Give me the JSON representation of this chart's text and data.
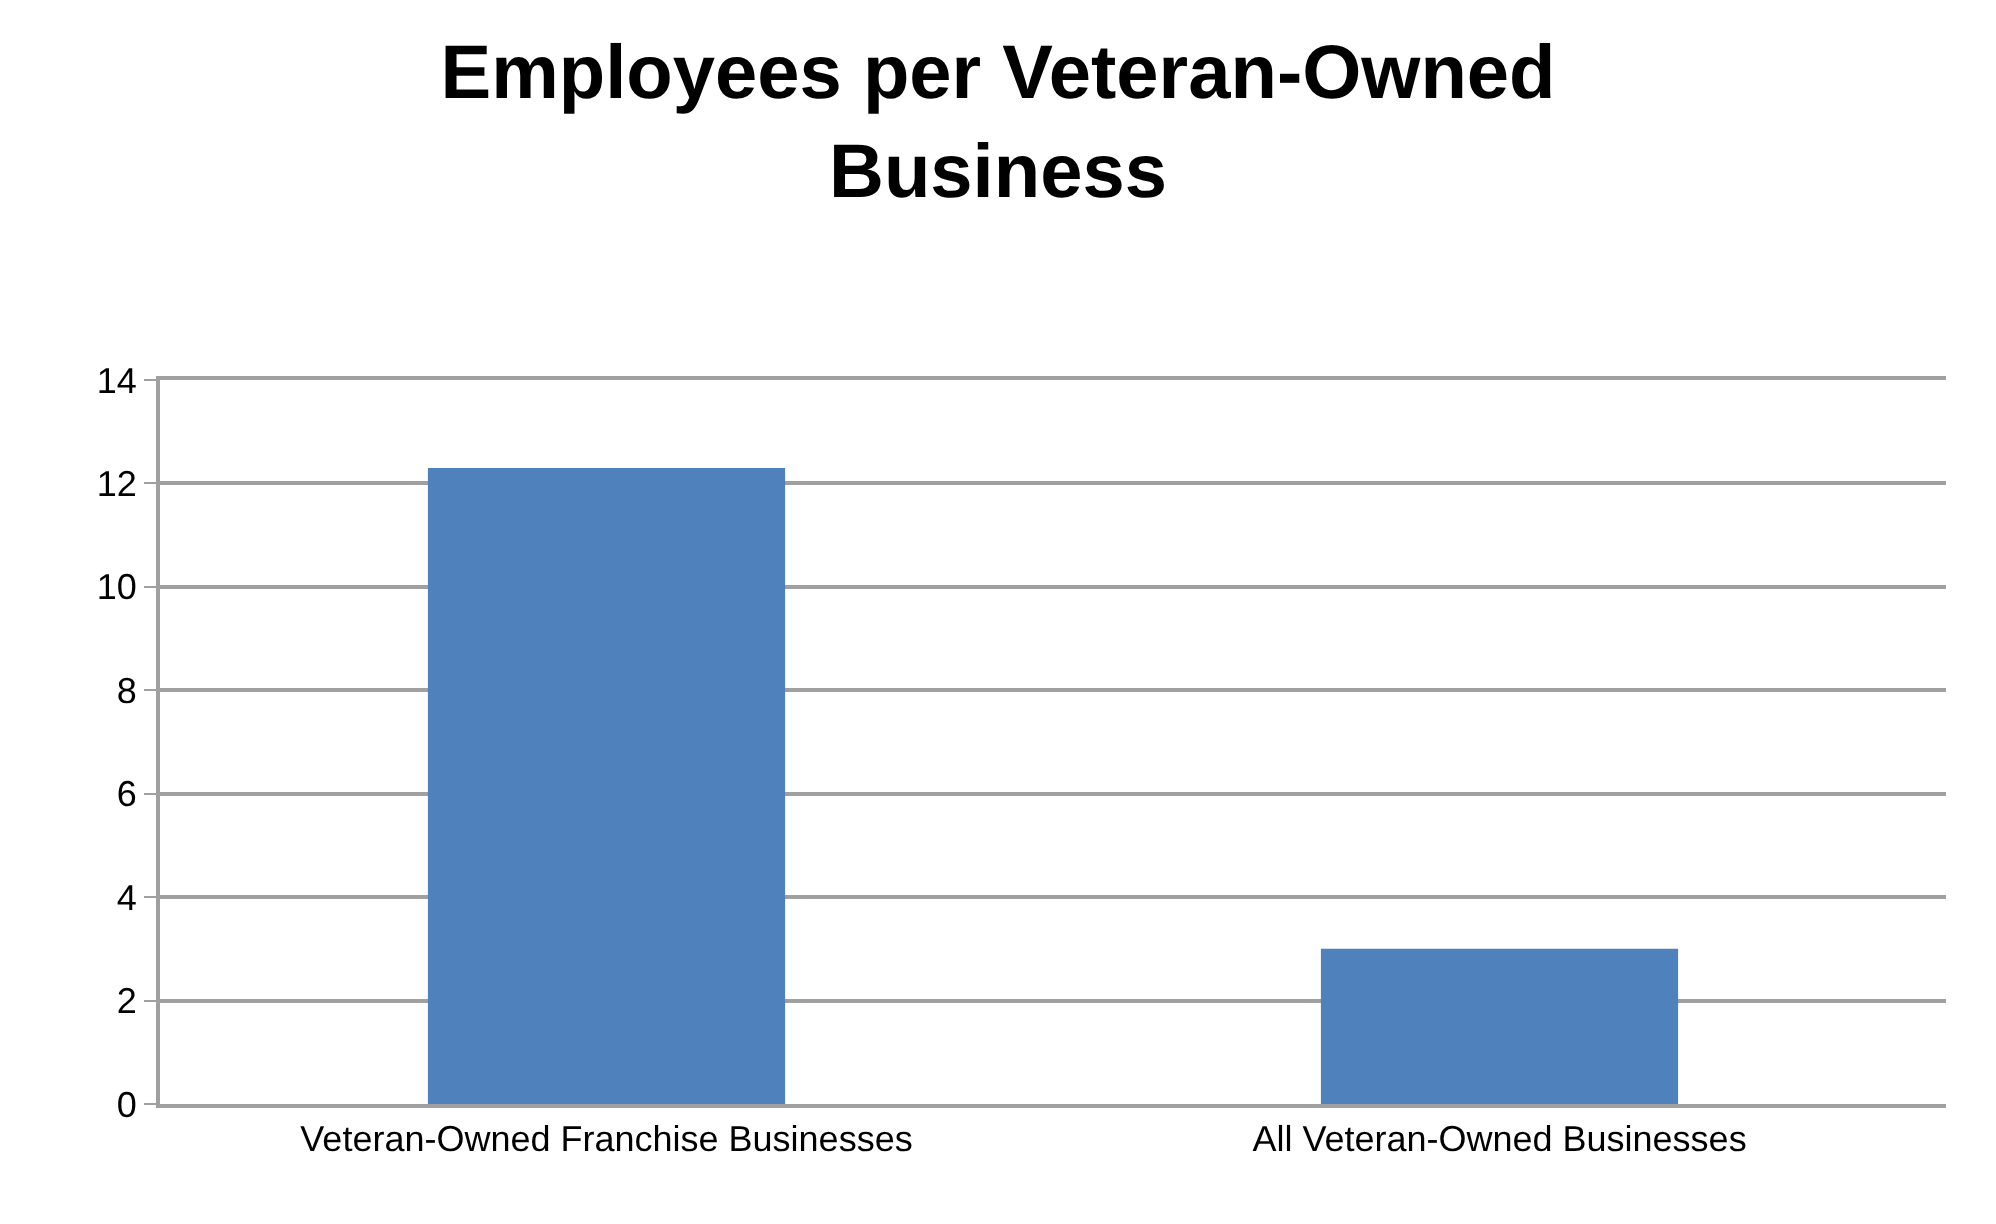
{
  "chart_data": {
    "type": "bar",
    "title": "Employees per Veteran-Owned Business",
    "categories": [
      "Veteran-Owned Franchise Businesses",
      "All Veteran-Owned Businesses"
    ],
    "values": [
      12.3,
      3.0
    ],
    "color": "#4f81bd",
    "ylim": [
      0,
      14
    ],
    "yticks": [
      0,
      2,
      4,
      6,
      8,
      10,
      12,
      14
    ],
    "grid": "y"
  }
}
